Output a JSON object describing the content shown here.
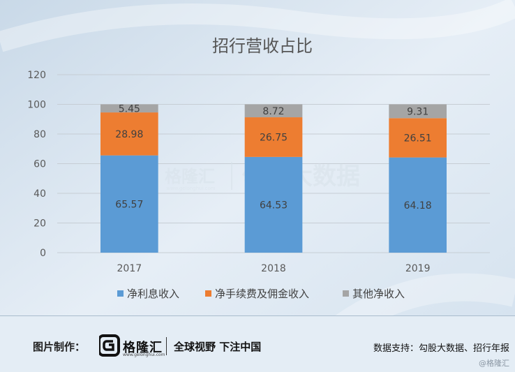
{
  "chart_data": {
    "type": "bar",
    "stacked": true,
    "title": "招行营收占比",
    "categories": [
      "2017",
      "2018",
      "2019"
    ],
    "series": [
      {
        "name": "净利息收入",
        "values": [
          65.57,
          64.53,
          64.18
        ],
        "color": "#5b9bd5"
      },
      {
        "name": "净手续费及佣金收入",
        "values": [
          28.98,
          26.75,
          26.51
        ],
        "color": "#ed7d31"
      },
      {
        "name": "其他净收入",
        "values": [
          5.45,
          8.72,
          9.31
        ],
        "color": "#a5a5a5"
      }
    ],
    "ylim": [
      0,
      120
    ],
    "yticks": [
      0,
      20,
      40,
      60,
      80,
      100,
      120
    ],
    "grid": true,
    "legend": "bottom"
  },
  "watermark": {
    "brand": "格隆汇",
    "url": "www.gelonghui.com",
    "partner": "勾股大数据"
  },
  "footer": {
    "label": "图片制作：",
    "brand": "格隆汇",
    "url": "www.gelonghui.com",
    "slogan": "全球视野 下注中国",
    "source": "数据支持：勾股大数据、招行年报",
    "handle": "@格隆汇"
  }
}
